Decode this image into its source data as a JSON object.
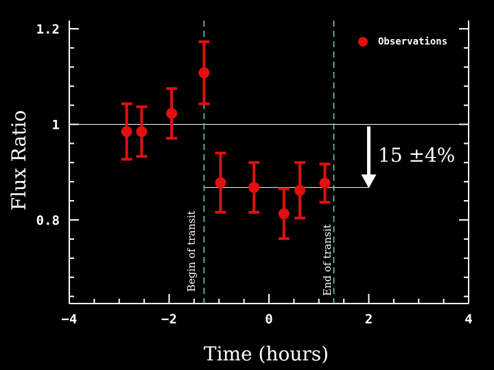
{
  "chart_data": {
    "type": "scatter",
    "xlabel": "Time (hours)",
    "ylabel": "Flux Ratio",
    "xlim": [
      -4,
      4
    ],
    "ylim": [
      0.62,
      1.2
    ],
    "x_ticks": [
      {
        "value": -4,
        "label": "−4"
      },
      {
        "value": -2,
        "label": "−2"
      },
      {
        "value": 0,
        "label": "0"
      },
      {
        "value": 2,
        "label": "2"
      },
      {
        "value": 4,
        "label": "4"
      }
    ],
    "y_ticks": [
      {
        "value": 0.8,
        "label": "0.8"
      },
      {
        "value": 1.0,
        "label": "1"
      },
      {
        "value": 1.2,
        "label": "1.2"
      }
    ],
    "y_minor_step": 0.04,
    "x_minor_step": 0.5,
    "series": [
      {
        "name": "Observations",
        "color": "#e01010",
        "points": [
          {
            "x": -2.85,
            "y": 0.985,
            "err": 0.058
          },
          {
            "x": -2.55,
            "y": 0.985,
            "err": 0.052
          },
          {
            "x": -1.95,
            "y": 1.023,
            "err": 0.052
          },
          {
            "x": -1.3,
            "y": 1.108,
            "err": 0.065
          },
          {
            "x": -0.97,
            "y": 0.878,
            "err": 0.062
          },
          {
            "x": -0.3,
            "y": 0.868,
            "err": 0.052
          },
          {
            "x": 0.3,
            "y": 0.813,
            "err": 0.052
          },
          {
            "x": 0.62,
            "y": 0.862,
            "err": 0.058
          },
          {
            "x": 1.12,
            "y": 0.877,
            "err": 0.04
          }
        ]
      }
    ],
    "transit_begin": -1.3,
    "transit_end": 1.3,
    "transit_color": "#7fc8d8",
    "baseline": 1.0,
    "transit_level": 0.868,
    "depth_arrow_x": 2.0
  },
  "annotations": {
    "begin_label": "Begin of transit",
    "end_label": "End of transit",
    "depth_label": "15 ±4%"
  },
  "legend": {
    "position": "top-right"
  }
}
